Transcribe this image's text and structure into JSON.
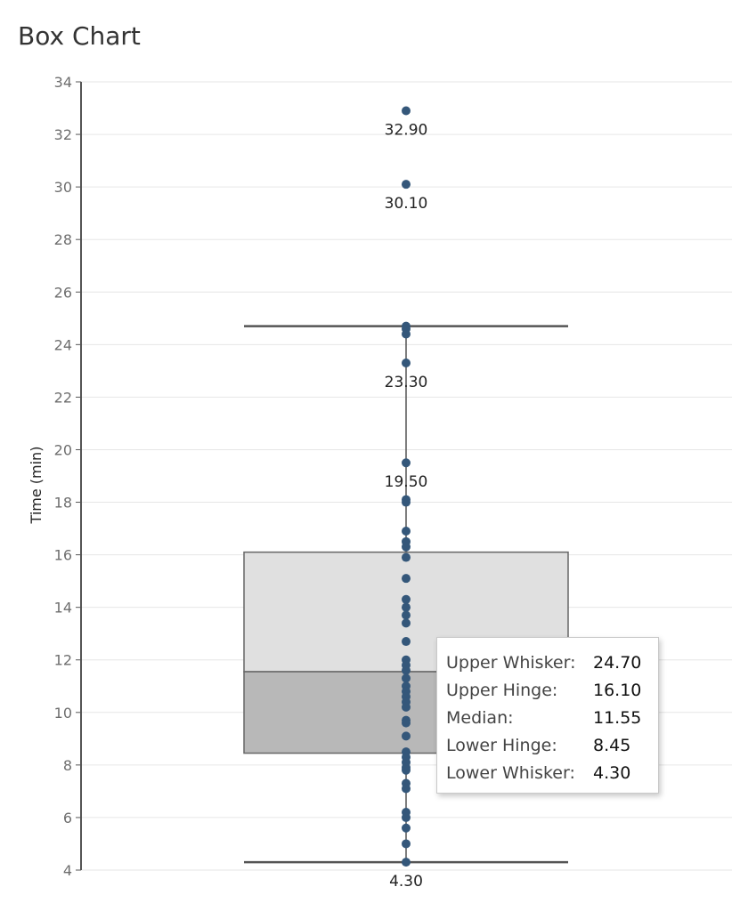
{
  "chart_data": {
    "type": "box",
    "title": "Box Chart",
    "ylabel": "Time (min)",
    "ylim": [
      4,
      34
    ],
    "yticks": [
      4,
      6,
      8,
      10,
      12,
      14,
      16,
      18,
      20,
      22,
      24,
      26,
      28,
      30,
      32,
      34
    ],
    "grid": true,
    "box": {
      "upper_whisker": 24.7,
      "upper_hinge": 16.1,
      "median": 11.55,
      "lower_hinge": 8.45,
      "lower_whisker": 4.3
    },
    "points": [
      32.9,
      30.1,
      24.7,
      24.6,
      24.4,
      23.3,
      19.5,
      18.1,
      18.0,
      16.9,
      16.5,
      16.3,
      15.9,
      15.1,
      14.3,
      14.0,
      13.7,
      13.4,
      12.7,
      12.0,
      11.8,
      11.6,
      11.3,
      11.0,
      10.8,
      10.6,
      10.4,
      10.2,
      9.7,
      9.6,
      9.1,
      8.5,
      8.3,
      8.1,
      7.9,
      7.8,
      7.3,
      7.1,
      6.2,
      6.0,
      5.6,
      5.0,
      4.3
    ],
    "labeled_points": [
      {
        "value": 32.9,
        "label": "32.90"
      },
      {
        "value": 30.1,
        "label": "30.10"
      },
      {
        "value": 23.3,
        "label": "23.30"
      },
      {
        "value": 19.5,
        "label": "19.50"
      },
      {
        "value": 4.3,
        "label": "4.30"
      }
    ],
    "colors": {
      "point": "#34577a",
      "box_upper": "#e0e0e0",
      "box_lower": "#b8b8b8",
      "box_stroke": "#666666",
      "whisker": "#555555",
      "grid": "#e6e6e6"
    }
  },
  "tooltip": {
    "rows": [
      {
        "label": "Upper Whisker:",
        "value": "24.70"
      },
      {
        "label": "Upper Hinge:",
        "value": "16.10"
      },
      {
        "label": "Median:",
        "value": "11.55"
      },
      {
        "label": "Lower Hinge:",
        "value": "8.45"
      },
      {
        "label": "Lower Whisker:",
        "value": "4.30"
      }
    ]
  }
}
